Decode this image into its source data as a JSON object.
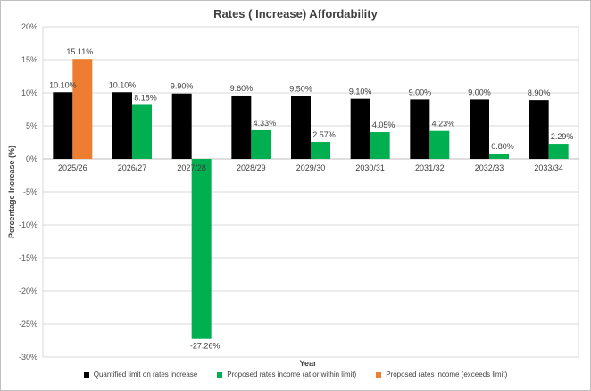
{
  "chart_data": {
    "type": "bar",
    "title": "Rates ( Increase) Affordability",
    "xlabel": "Year",
    "ylabel": "Percentage Increase (%)",
    "ylim": [
      -30,
      20
    ],
    "yticks": [
      "20%",
      "15%",
      "10%",
      "5%",
      "0%",
      "-5%",
      "-10%",
      "-15%",
      "-20%",
      "-25%",
      "-30%"
    ],
    "categories": [
      "2025/26",
      "2026/27",
      "2027/28",
      "2028/29",
      "2029/30",
      "2030/31",
      "2031/32",
      "2032/33",
      "2033/34"
    ],
    "series": [
      {
        "name": "Quantified limit on rates increase",
        "color": "#000000",
        "values": [
          10.1,
          10.1,
          9.9,
          9.6,
          9.5,
          9.1,
          9.0,
          9.0,
          8.9
        ],
        "labels": [
          "10.10%",
          "10.10%",
          "9.90%",
          "9.60%",
          "9.50%",
          "9.10%",
          "9.00%",
          "9.00%",
          "8.90%"
        ]
      },
      {
        "name": "Proposed rates income (at or within limit)",
        "color": "#00b050",
        "values": [
          null,
          8.18,
          -27.26,
          4.33,
          2.57,
          4.05,
          4.23,
          0.8,
          2.29
        ],
        "labels": [
          null,
          "8.18%",
          "-27.26%",
          "4.33%",
          "2.57%",
          "4.05%",
          "4.23%",
          "0.80%",
          "2.29%"
        ]
      },
      {
        "name": "Proposed  rates income (exceeds limit)",
        "color": "#ed7d31",
        "values": [
          15.11,
          null,
          null,
          null,
          null,
          null,
          null,
          null,
          null
        ],
        "labels": [
          "15.11%",
          null,
          null,
          null,
          null,
          null,
          null,
          null,
          null
        ]
      }
    ],
    "grid": true,
    "legend": "bottom"
  }
}
